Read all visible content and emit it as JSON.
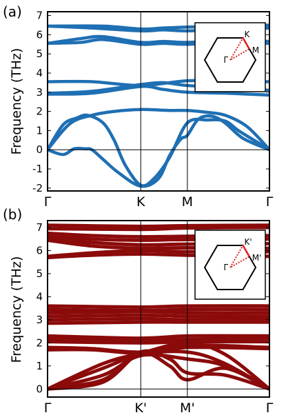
{
  "colors": {
    "panel_a": "#1f6fb3",
    "panel_b": "#8b0a0a",
    "inset_path": "#e02020",
    "axes": "#000000"
  },
  "chart_data": [
    {
      "type": "line",
      "panel_label": "(a)",
      "ylabel": "Frequency (THz)",
      "ylim": [
        -2.15,
        7.2
      ],
      "yticks": [
        "-2",
        "-1",
        "0",
        "1",
        "2",
        "3",
        "4",
        "5",
        "6",
        "7"
      ],
      "xticks": [
        "Γ",
        "K",
        "M",
        "Γ"
      ],
      "xtick_positions": [
        0,
        0.42,
        0.63,
        1.0
      ],
      "inset_labels": [
        "K",
        "M",
        "Γ"
      ],
      "grid": false,
      "series": [
        {
          "x": [
            0,
            0.25,
            0.42,
            0.52,
            0.63,
            0.8,
            1.0
          ],
          "y": [
            6.45,
            6.45,
            6.3,
            6.35,
            6.4,
            6.45,
            6.5
          ]
        },
        {
          "x": [
            0,
            0.2,
            0.42,
            0.52,
            0.63,
            0.8,
            1.0
          ],
          "y": [
            6.45,
            6.35,
            6.2,
            6.25,
            6.2,
            6.3,
            6.35
          ]
        },
        {
          "x": [
            0,
            0.15,
            0.25,
            0.42,
            0.52,
            0.63,
            0.8,
            1.0
          ],
          "y": [
            5.55,
            5.8,
            5.9,
            5.6,
            5.65,
            5.6,
            5.7,
            5.65
          ]
        },
        {
          "x": [
            0,
            0.15,
            0.25,
            0.42,
            0.52,
            0.63,
            0.8,
            1.0
          ],
          "y": [
            5.55,
            5.6,
            5.75,
            5.5,
            5.55,
            5.5,
            5.6,
            5.55
          ]
        },
        {
          "x": [
            0,
            0.2,
            0.42,
            0.63,
            0.8,
            1.0
          ],
          "y": [
            3.55,
            3.55,
            3.35,
            3.6,
            3.55,
            3.55
          ]
        },
        {
          "x": [
            0,
            0.2,
            0.42,
            0.52,
            0.63,
            0.8,
            1.0
          ],
          "y": [
            2.95,
            3.05,
            3.4,
            3.5,
            3.35,
            3.25,
            3.1
          ]
        },
        {
          "x": [
            0,
            0.2,
            0.42,
            0.52,
            0.63,
            0.8,
            1.0
          ],
          "y": [
            2.9,
            2.95,
            3.3,
            3.15,
            3.0,
            2.95,
            2.85
          ]
        },
        {
          "x": [
            0,
            0.1,
            0.2,
            0.3,
            0.42,
            0.55,
            0.63,
            0.72,
            0.8,
            0.9,
            1.0
          ],
          "y": [
            0,
            1.35,
            1.8,
            2.0,
            2.1,
            2.05,
            2.05,
            1.95,
            1.8,
            1.2,
            0
          ]
        },
        {
          "x": [
            0,
            0.07,
            0.13,
            0.18,
            0.25,
            0.3,
            0.35,
            0.42,
            0.48,
            0.55,
            0.63,
            0.72,
            0.8,
            0.86,
            0.93,
            1.0
          ],
          "y": [
            0,
            1.3,
            1.65,
            1.8,
            1.4,
            0.5,
            -0.8,
            -1.85,
            -1.5,
            -0.4,
            1.4,
            1.55,
            1.5,
            1.0,
            0.5,
            0
          ]
        },
        {
          "x": [
            0,
            0.07,
            0.12,
            0.17,
            0.2,
            0.25,
            0.32,
            0.42,
            0.5,
            0.55,
            0.6,
            0.63,
            0.68,
            0.74,
            0.8,
            0.88,
            1.0
          ],
          "y": [
            0,
            -0.25,
            0.05,
            0.05,
            0.0,
            -0.5,
            -1.2,
            -1.9,
            -1.5,
            -0.3,
            0.55,
            0.75,
            1.6,
            1.75,
            1.4,
            0.6,
            0
          ]
        }
      ]
    },
    {
      "type": "line",
      "panel_label": "(b)",
      "ylabel": "Frequency (THz)",
      "ylim": [
        -0.35,
        7.3
      ],
      "yticks": [
        "0",
        "1",
        "2",
        "3",
        "4",
        "5",
        "6",
        "7"
      ],
      "xticks": [
        "Γ",
        "K'",
        "M'",
        "Γ"
      ],
      "xtick_positions": [
        0,
        0.42,
        0.63,
        1.0
      ],
      "inset_labels": [
        "K'",
        "M'",
        "Γ"
      ],
      "grid": false,
      "series": [
        {
          "x": [
            0,
            0.42,
            0.63,
            1.0
          ],
          "y": [
            7.1,
            7.05,
            7.08,
            7.1
          ]
        },
        {
          "x": [
            0,
            0.42,
            0.63,
            1.0
          ],
          "y": [
            6.95,
            6.92,
            6.98,
            7.0
          ]
        },
        {
          "x": [
            0,
            0.2,
            0.42,
            0.63,
            1.0
          ],
          "y": [
            6.75,
            6.65,
            6.6,
            6.62,
            6.65
          ]
        },
        {
          "x": [
            0,
            0.2,
            0.42,
            0.63,
            1.0
          ],
          "y": [
            6.65,
            6.5,
            6.45,
            6.48,
            6.5
          ]
        },
        {
          "x": [
            0,
            0.2,
            0.42,
            0.63,
            1.0
          ],
          "y": [
            6.55,
            6.35,
            6.25,
            6.28,
            6.3
          ]
        },
        {
          "x": [
            0,
            0.2,
            0.42,
            0.63,
            1.0
          ],
          "y": [
            6.45,
            6.2,
            6.1,
            6.12,
            6.1
          ]
        },
        {
          "x": [
            0,
            0.2,
            0.42,
            0.63,
            1.0
          ],
          "y": [
            5.75,
            5.9,
            6.0,
            5.95,
            5.95
          ]
        },
        {
          "x": [
            0,
            0.2,
            0.42,
            0.63,
            1.0
          ],
          "y": [
            5.7,
            5.8,
            5.85,
            5.8,
            5.75
          ]
        },
        {
          "x": [
            0,
            0.42,
            0.63,
            1.0
          ],
          "y": [
            3.6,
            3.55,
            3.6,
            3.6
          ]
        },
        {
          "x": [
            0,
            0.42,
            0.63,
            1.0
          ],
          "y": [
            3.45,
            3.4,
            3.45,
            3.45
          ]
        },
        {
          "x": [
            0,
            0.42,
            0.63,
            1.0
          ],
          "y": [
            3.3,
            3.35,
            3.3,
            3.3
          ]
        },
        {
          "x": [
            0,
            0.42,
            0.63,
            1.0
          ],
          "y": [
            3.15,
            3.2,
            3.15,
            3.15
          ]
        },
        {
          "x": [
            0,
            0.42,
            0.63,
            1.0
          ],
          "y": [
            3.0,
            3.05,
            3.0,
            3.05
          ]
        },
        {
          "x": [
            0,
            0.42,
            0.63,
            1.0
          ],
          "y": [
            2.85,
            2.9,
            2.9,
            2.9
          ]
        },
        {
          "x": [
            0,
            0.42,
            0.63,
            1.0
          ],
          "y": [
            2.3,
            2.2,
            2.3,
            2.3
          ]
        },
        {
          "x": [
            0,
            0.42,
            0.63,
            1.0
          ],
          "y": [
            2.15,
            2.1,
            2.15,
            2.2
          ]
        },
        {
          "x": [
            0,
            0.42,
            0.63,
            1.0
          ],
          "y": [
            2.05,
            2.0,
            2.05,
            2.05
          ]
        },
        {
          "x": [
            0,
            0.2,
            0.42,
            0.63,
            1.0
          ],
          "y": [
            1.8,
            1.75,
            1.6,
            1.9,
            1.8
          ]
        },
        {
          "x": [
            0,
            0.2,
            0.42,
            0.63,
            1.0
          ],
          "y": [
            1.7,
            1.7,
            1.55,
            1.8,
            1.75
          ]
        },
        {
          "x": [
            0,
            0.25,
            0.42,
            0.63,
            0.8,
            1.0
          ],
          "y": [
            0,
            1.1,
            1.55,
            2.0,
            1.5,
            0
          ]
        },
        {
          "x": [
            0,
            0.25,
            0.42,
            0.63,
            0.8,
            1.0
          ],
          "y": [
            0,
            0.9,
            1.5,
            1.6,
            1.1,
            0
          ]
        },
        {
          "x": [
            0,
            0.25,
            0.42,
            0.63,
            0.8,
            1.0
          ],
          "y": [
            0,
            0.6,
            1.45,
            1.3,
            1.0,
            0
          ]
        },
        {
          "x": [
            0,
            0.25,
            0.42,
            0.55,
            0.63,
            0.8,
            1.0
          ],
          "y": [
            0,
            0.4,
            1.55,
            1.0,
            0.4,
            0.9,
            0
          ]
        },
        {
          "x": [
            0,
            0.25,
            0.42,
            0.55,
            0.63,
            0.8,
            1.0
          ],
          "y": [
            0,
            0.3,
            1.6,
            1.3,
            0.7,
            0.6,
            0
          ]
        }
      ]
    }
  ]
}
